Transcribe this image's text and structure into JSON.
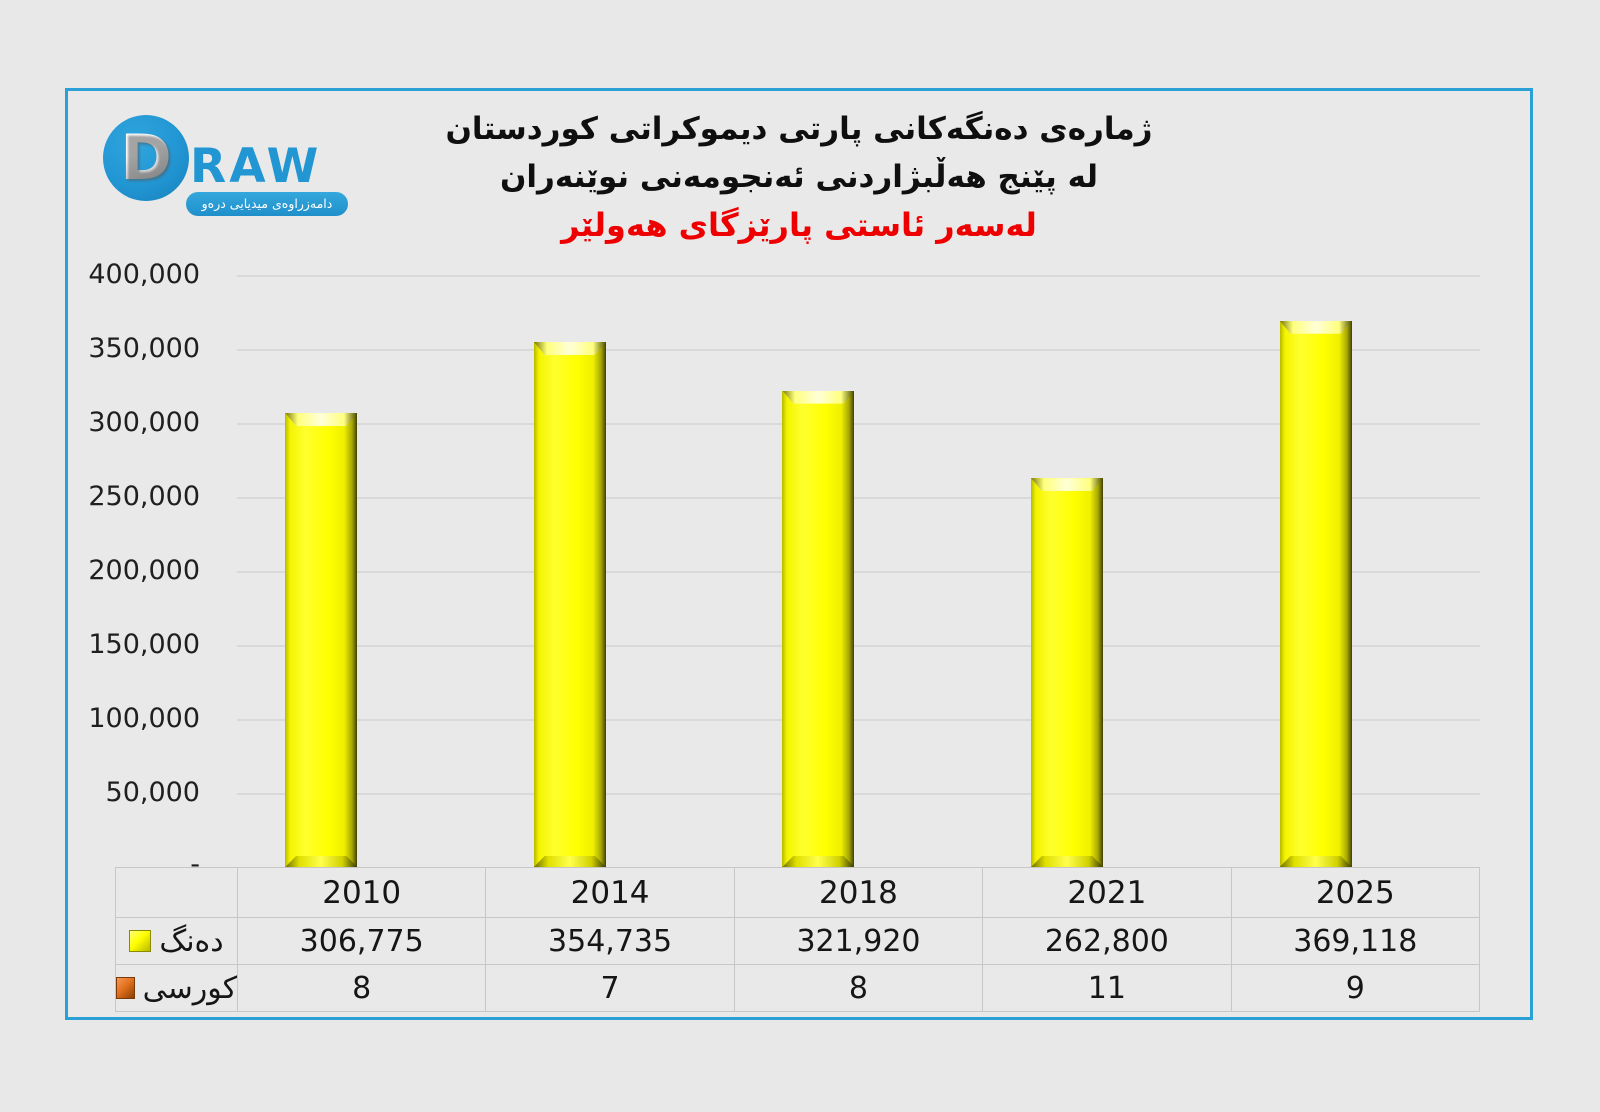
{
  "colors": {
    "frame_border": "#2ba0d6",
    "background": "#e9e9e9",
    "bar_yellow": "#ffff00",
    "seats_orange": "#e2711d",
    "subtitle_red": "#ee0000",
    "gridline": "#d9d9d9",
    "table_border": "#c7c7c7",
    "logo_blue": "#2196d3"
  },
  "logo": {
    "d_letter": "D",
    "raw_text": "RAW",
    "banner_text": "دامەزراوەی میدیایی درەو"
  },
  "title": {
    "line1": "ژمارەی دەنگەکانی پارتی دیموکراتی کوردستان",
    "line2": "لە پێنج هەڵبژاردنی ئەنجومەنی نوێنەران",
    "line3": "لەسەر ئاستی پارێزگای هەولێر"
  },
  "chart_data": {
    "type": "bar",
    "title": "ژمارەی دەنگەکانی پارتی دیموکراتی کوردستان لە پێنج هەڵبژاردنی ئەنجومەنی نوێنەران",
    "subtitle": "لەسەر ئاستی پارێزگای هەولێر",
    "categories": [
      "2010",
      "2014",
      "2018",
      "2021",
      "2025"
    ],
    "series": [
      {
        "name": "دەنگ",
        "render": "bar",
        "color": "#ffff00",
        "values": [
          306775,
          354735,
          321920,
          262800,
          369118
        ]
      },
      {
        "name": "کورسی",
        "render": "table-only",
        "color": "#e2711d",
        "values": [
          8,
          7,
          8,
          11,
          9
        ]
      }
    ],
    "ylim": [
      0,
      400000
    ],
    "ytick_step": 50000,
    "yticks": [
      "400,000",
      "350,000",
      "300,000",
      "250,000",
      "200,000",
      "150,000",
      "100,000",
      "50,000",
      "-"
    ],
    "grid": true,
    "legend_position": "table-rows-left"
  },
  "table": {
    "years": [
      "2010",
      "2014",
      "2018",
      "2021",
      "2025"
    ],
    "rows": [
      {
        "label": "دەنگ",
        "values": [
          "306,775",
          "354,735",
          "321,920",
          "262,800",
          "369,118"
        ]
      },
      {
        "label": "کورسی",
        "values": [
          "8",
          "7",
          "8",
          "11",
          "9"
        ]
      }
    ]
  }
}
